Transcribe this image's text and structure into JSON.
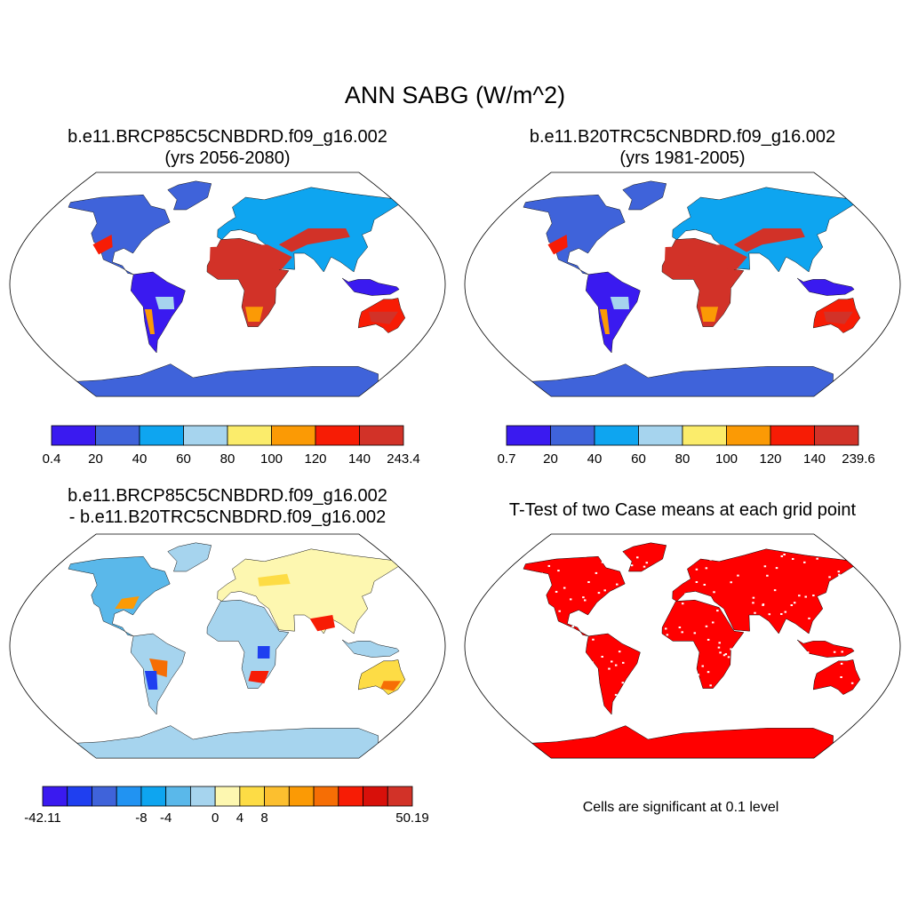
{
  "title": "ANN SABG (W/m^2)",
  "colors": {
    "abs": [
      "#3a1af0",
      "#3f63da",
      "#0ea5f0",
      "#a6d4ee",
      "#fbec6b",
      "#fb9a05",
      "#f71c05",
      "#d23228"
    ],
    "diff": [
      "#3a1af0",
      "#1f3ff0",
      "#3f63da",
      "#2193f2",
      "#0ea5f0",
      "#5ab8ea",
      "#a6d4ee",
      "#fdf7b0",
      "#fddc45",
      "#fcbf2f",
      "#fb9a05",
      "#f66e05",
      "#f71c05",
      "#d8100a",
      "#d23228"
    ],
    "ttest": "#ff0000",
    "land_grey": "#d9d9d9",
    "antarctica": "#3f63da"
  },
  "panels": {
    "top_left": {
      "title_line1": "b.e11.BRCP85C5CNBDRD.f09_g16.002",
      "title_line2": "(yrs 2056-2080)",
      "colorbar_labels": [
        "0.4",
        "20",
        "40",
        "60",
        "80",
        "100",
        "120",
        "140",
        "243.4"
      ]
    },
    "top_right": {
      "title_line1": "b.e11.B20TRC5CNBDRD.f09_g16.002",
      "title_line2": "(yrs 1981-2005)",
      "colorbar_labels": [
        "0.7",
        "20",
        "40",
        "60",
        "80",
        "100",
        "120",
        "140",
        "239.6"
      ]
    },
    "bottom_left": {
      "title_line1": "b.e11.BRCP85C5CNBDRD.f09_g16.002",
      "title_line2": "- b.e11.B20TRC5CNBDRD.f09_g16.002",
      "colorbar_labels": [
        "-42.11",
        "-8",
        "-4",
        "0",
        "4",
        "8",
        "50.19"
      ]
    },
    "bottom_right": {
      "title_line1": "T-Test of two Case means at each grid point",
      "note": "Cells are significant at 0.1 level"
    }
  }
}
